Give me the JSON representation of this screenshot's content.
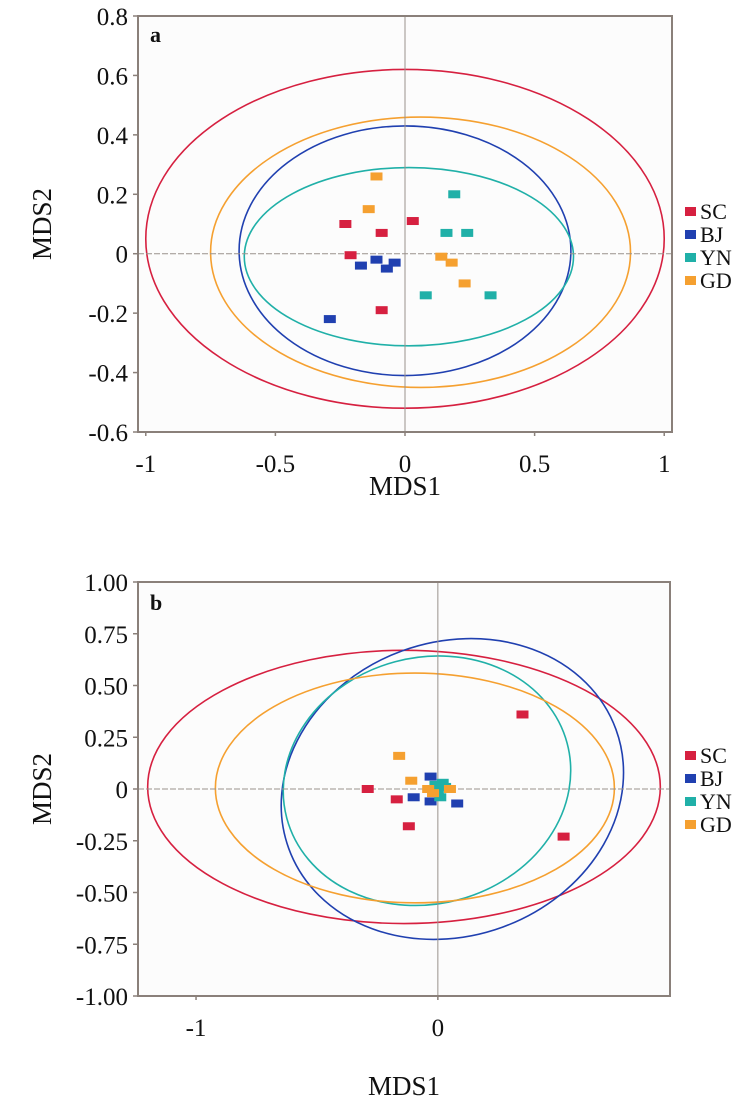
{
  "chart_data": [
    {
      "type": "scatter",
      "panel_label": "a",
      "xlabel": "MDS1",
      "ylabel": "MDS2",
      "xlim": [
        -1.03,
        1.03
      ],
      "ylim": [
        -0.6,
        0.8
      ],
      "xticks": [
        -1,
        -0.5,
        0,
        0.5,
        1
      ],
      "xtick_labels": [
        "-1",
        "-0.5",
        "0",
        "0.5",
        "1"
      ],
      "yticks": [
        0.8,
        0.6,
        0.4,
        0.2,
        0,
        -0.2,
        -0.4,
        -0.6
      ],
      "ytick_labels": [
        "0.8",
        "0.6",
        "0.4",
        "0.2",
        "0",
        "-0.2",
        "-0.4",
        "-0.6"
      ],
      "grid": false,
      "reference_lines": {
        "x": 0,
        "y": 0
      },
      "legend_position": "right",
      "series": [
        {
          "name": "SC",
          "color": "#d62040",
          "points": [
            [
              -0.23,
              0.1
            ],
            [
              -0.09,
              0.07
            ],
            [
              0.03,
              0.11
            ],
            [
              -0.21,
              -0.005
            ],
            [
              -0.09,
              -0.19
            ]
          ],
          "ellipse": {
            "cx": 0.0,
            "cy": 0.05,
            "rx": 1.0,
            "ry": 0.57,
            "angle": 0
          }
        },
        {
          "name": "BJ",
          "color": "#2040b0",
          "points": [
            [
              -0.11,
              -0.02
            ],
            [
              -0.17,
              -0.04
            ],
            [
              -0.07,
              -0.05
            ],
            [
              -0.04,
              -0.03
            ],
            [
              -0.29,
              -0.22
            ]
          ],
          "ellipse": {
            "cx": 0.0,
            "cy": 0.01,
            "rx": 0.64,
            "ry": 0.42,
            "angle": 0
          }
        },
        {
          "name": "YN",
          "color": "#20b0a8",
          "points": [
            [
              0.19,
              0.2
            ],
            [
              0.16,
              0.07
            ],
            [
              0.24,
              0.07
            ],
            [
              0.08,
              -0.14
            ],
            [
              0.33,
              -0.14
            ]
          ],
          "ellipse": {
            "cx": 0.015,
            "cy": -0.01,
            "rx": 0.635,
            "ry": 0.3,
            "angle": 0
          }
        },
        {
          "name": "GD",
          "color": "#f5a030",
          "points": [
            [
              -0.11,
              0.26
            ],
            [
              -0.14,
              0.15
            ],
            [
              0.14,
              -0.01
            ],
            [
              0.18,
              -0.03
            ],
            [
              0.23,
              -0.1
            ]
          ],
          "ellipse": {
            "cx": 0.06,
            "cy": 0.005,
            "rx": 0.81,
            "ry": 0.455,
            "angle": 0
          }
        }
      ]
    },
    {
      "type": "scatter",
      "panel_label": "b",
      "xlabel": "MDS1",
      "ylabel": "MDS2",
      "xlim": [
        -1.24,
        0.96
      ],
      "ylim": [
        -1.0,
        1.0
      ],
      "xticks": [
        -1,
        0
      ],
      "xtick_labels": [
        "-1",
        "0"
      ],
      "yticks": [
        1.0,
        0.75,
        0.5,
        0.25,
        0,
        -0.25,
        -0.5,
        -0.75,
        -1.0
      ],
      "ytick_labels": [
        "1.00",
        "0.75",
        "0.50",
        "0.25",
        "0",
        "-0.25",
        "-0.50",
        "-0.75",
        "-1.00"
      ],
      "grid": false,
      "reference_lines": {
        "x": 0,
        "y": 0
      },
      "legend_position": "right",
      "series": [
        {
          "name": "SC",
          "color": "#d62040",
          "points": [
            [
              -0.29,
              0.0
            ],
            [
              0.35,
              0.36
            ],
            [
              0.52,
              -0.23
            ],
            [
              -0.17,
              -0.05
            ],
            [
              -0.12,
              -0.18
            ]
          ],
          "ellipse": {
            "cx": -0.14,
            "cy": 0.01,
            "rx": 1.06,
            "ry": 0.66,
            "angle": 0
          }
        },
        {
          "name": "BJ",
          "color": "#2040b0",
          "points": [
            [
              -0.03,
              0.06
            ],
            [
              -0.1,
              -0.04
            ],
            [
              -0.03,
              -0.06
            ],
            [
              0.08,
              -0.07
            ],
            [
              -0.02,
              0.0
            ]
          ],
          "ellipse": {
            "cx": 0.06,
            "cy": 0.0,
            "rx": 0.72,
            "ry": 0.71,
            "angle": -20
          }
        },
        {
          "name": "YN",
          "color": "#20b0a8",
          "points": [
            [
              0.02,
              0.03
            ],
            [
              0.0,
              -0.01
            ],
            [
              0.01,
              -0.04
            ],
            [
              0.03,
              0.01
            ],
            [
              -0.01,
              0.02
            ]
          ],
          "ellipse": {
            "cx": -0.045,
            "cy": 0.04,
            "rx": 0.6,
            "ry": 0.595,
            "angle": -15
          }
        },
        {
          "name": "GD",
          "color": "#f5a030",
          "points": [
            [
              -0.16,
              0.16
            ],
            [
              -0.11,
              0.04
            ],
            [
              -0.04,
              0.0
            ],
            [
              -0.02,
              -0.02
            ],
            [
              0.05,
              0.0
            ]
          ],
          "ellipse": {
            "cx": -0.095,
            "cy": 0.005,
            "rx": 0.825,
            "ry": 0.555,
            "angle": 0
          }
        }
      ]
    }
  ]
}
